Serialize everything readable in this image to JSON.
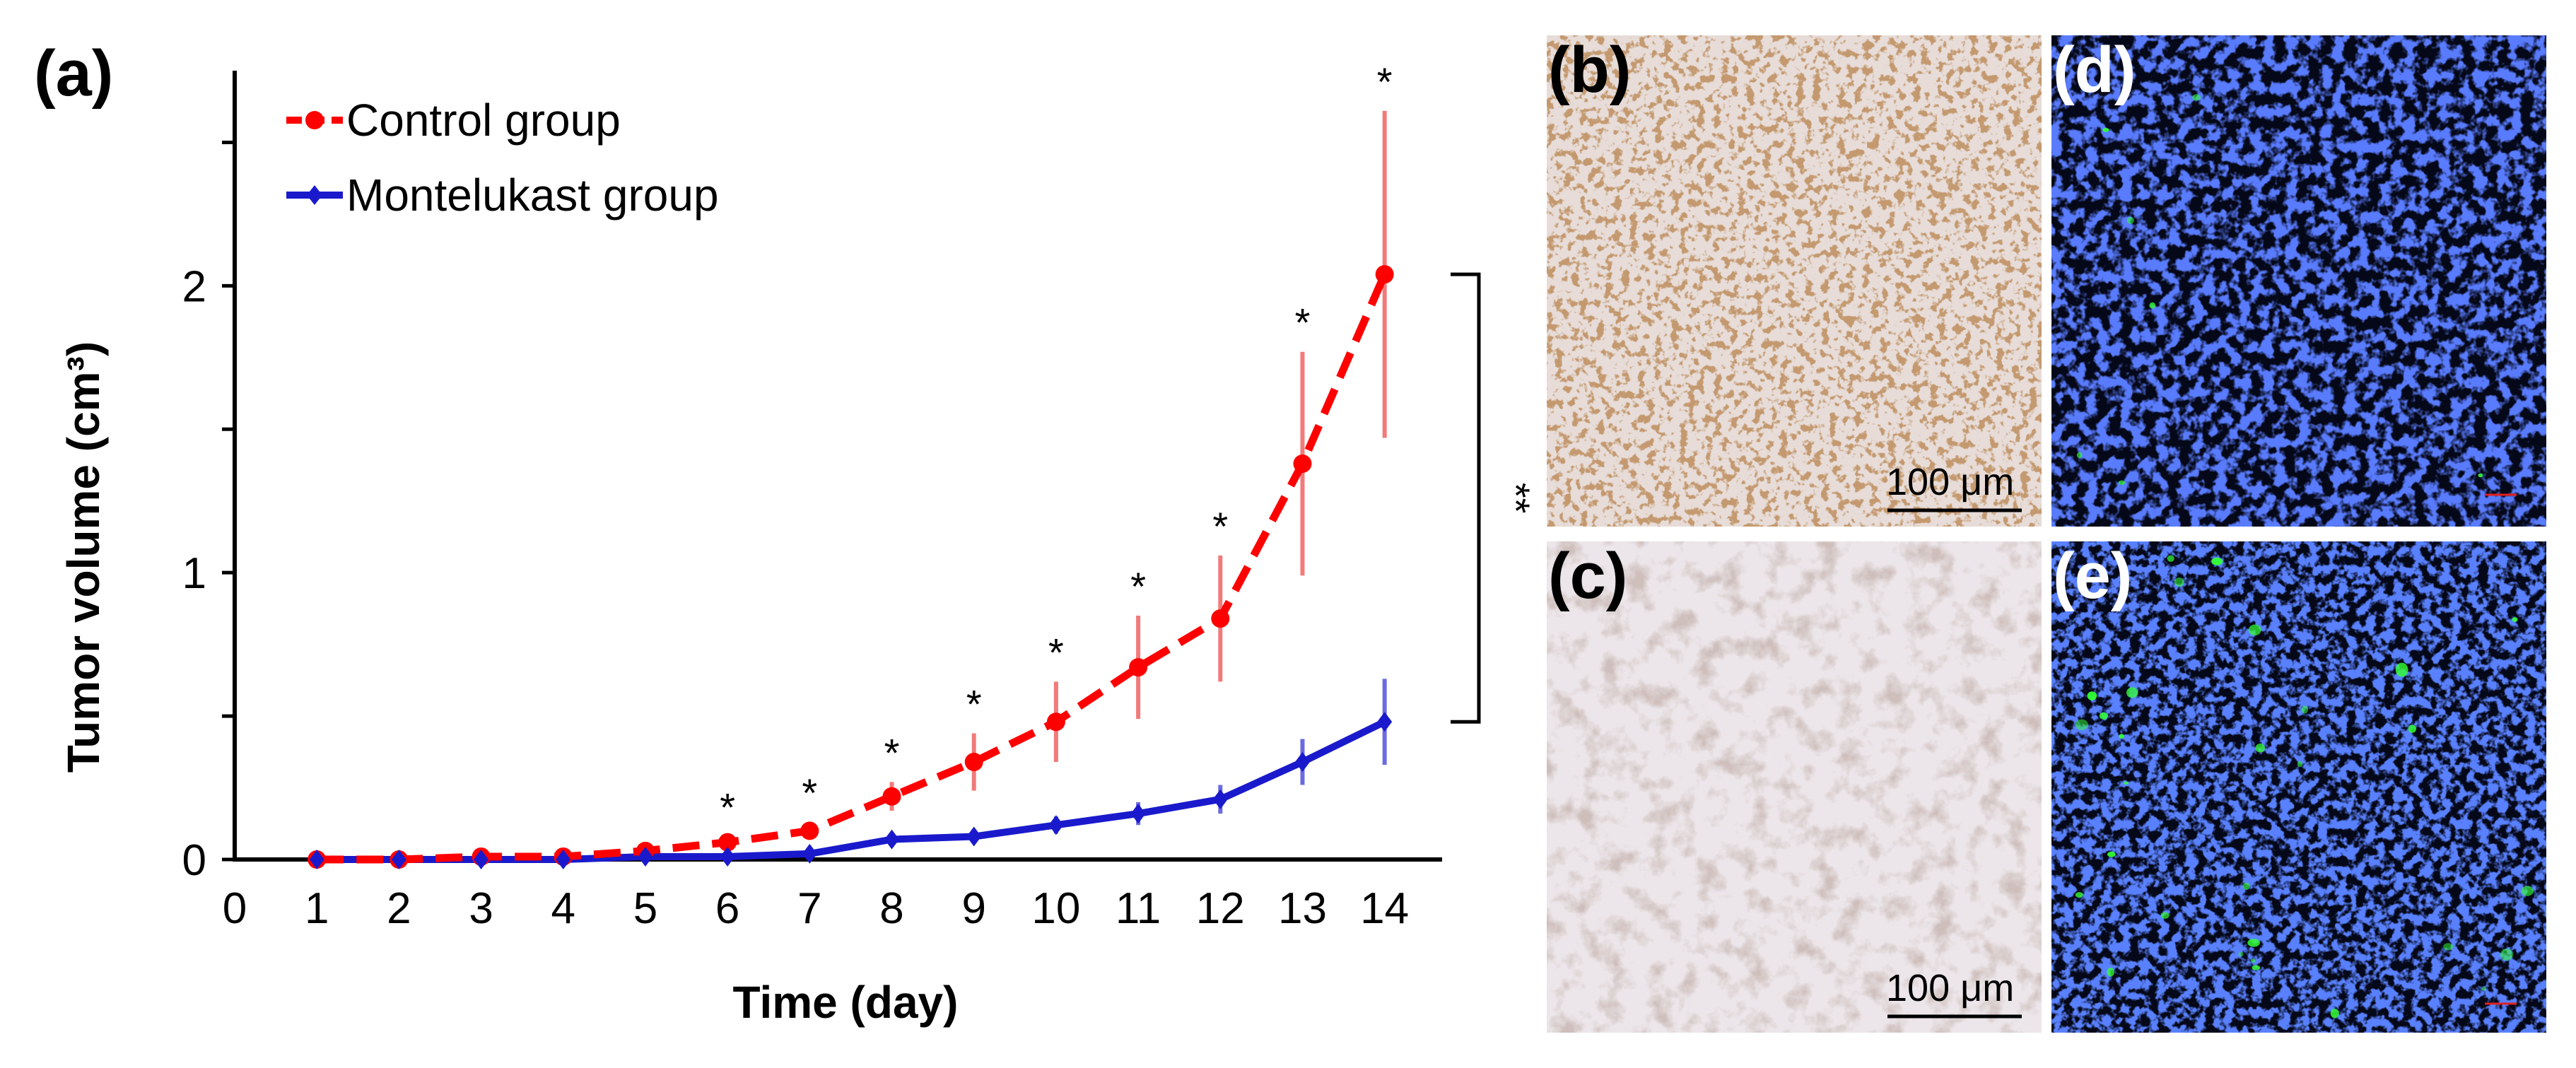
{
  "panels": {
    "a": "(a)",
    "b": "(b)",
    "c": "(c)",
    "d": "(d)",
    "e": "(e)"
  },
  "micrographs": {
    "b": {
      "scale_bar": "100 μm",
      "stain": "brown nuclear IHC, dense"
    },
    "c": {
      "scale_bar": "100 μm",
      "stain": "pale IHC, sparse"
    },
    "d": {
      "stain": "blue nuclear fluorescence, few green cells"
    },
    "e": {
      "stain": "blue nuclear fluorescence, many green cells"
    }
  },
  "colors": {
    "control": "#ff0000",
    "control_err": "#f27a7a",
    "montelukast": "#1a1acc",
    "montelukast_err": "#6b6be0"
  },
  "chart_data": {
    "type": "line",
    "xlabel": "Time (day)",
    "ylabel": "Tumor volume (cm³)",
    "xlim": [
      0,
      14.7
    ],
    "ylim": [
      0,
      2.75
    ],
    "xticks": [
      "0",
      "1",
      "2",
      "3",
      "4",
      "5",
      "6",
      "7",
      "8",
      "9",
      "10",
      "11",
      "12",
      "13",
      "14"
    ],
    "yticks": [
      "0",
      "1",
      "2"
    ],
    "legend": [
      "Control group",
      "Montelukast group"
    ],
    "series": [
      {
        "name": "Control group",
        "style": "dashed",
        "x": [
          1,
          2,
          3,
          4,
          5,
          6,
          7,
          8,
          9,
          10,
          11,
          12,
          13,
          14
        ],
        "values": [
          0.0,
          0.0,
          0.01,
          0.01,
          0.03,
          0.06,
          0.1,
          0.22,
          0.34,
          0.48,
          0.67,
          0.84,
          1.38,
          2.04
        ],
        "err": [
          0,
          0,
          0,
          0,
          0.01,
          0.02,
          0.03,
          0.05,
          0.1,
          0.14,
          0.18,
          0.22,
          0.39,
          0.57
        ]
      },
      {
        "name": "Montelukast group",
        "style": "solid",
        "x": [
          1,
          2,
          3,
          4,
          5,
          6,
          7,
          8,
          9,
          10,
          11,
          12,
          13,
          14
        ],
        "values": [
          0.0,
          0.0,
          0.0,
          0.0,
          0.01,
          0.01,
          0.02,
          0.07,
          0.08,
          0.12,
          0.16,
          0.21,
          0.34,
          0.48
        ],
        "err": [
          0,
          0,
          0,
          0,
          0,
          0,
          0.01,
          0.02,
          0.02,
          0.03,
          0.04,
          0.05,
          0.08,
          0.15
        ]
      }
    ],
    "significance_days": [
      6,
      7,
      8,
      9,
      10,
      11,
      12,
      13,
      14
    ],
    "significance_mark": "*",
    "bracket_mark": "**"
  }
}
